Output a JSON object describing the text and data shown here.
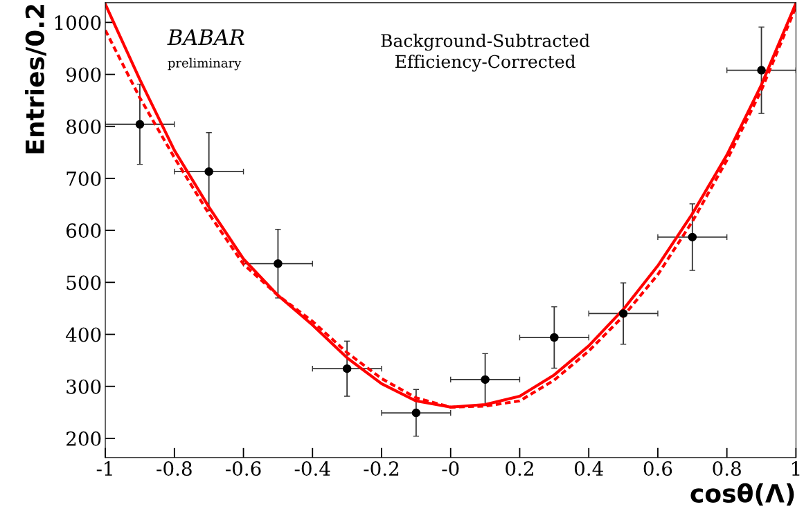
{
  "chart_data": {
    "type": "scatter",
    "xlabel": "cosθ(Λ)",
    "ylabel": "Entries/0.2",
    "annotations": [
      "BABAR",
      "preliminary",
      "Background-Subtracted\nEfficiency-Corrected"
    ],
    "xlim": [
      -1,
      1
    ],
    "xticks": [
      -1,
      -0.8,
      -0.6,
      -0.4,
      -0.2,
      {
        "value": 0,
        "label": "-0"
      },
      0.2,
      0.4,
      0.6,
      0.8,
      1
    ],
    "ylim": [
      163,
      1038
    ],
    "yticks": [
      200,
      300,
      400,
      500,
      600,
      700,
      800,
      900,
      1000
    ],
    "grid": false,
    "legend": false,
    "series": [
      {
        "color": "#000000",
        "marker": "circle",
        "x": [
          -0.9,
          -0.7,
          -0.5,
          -0.3,
          -0.1,
          0.1,
          0.3,
          0.5,
          0.7,
          0.9
        ],
        "values": [
          804,
          713,
          536,
          334,
          249,
          313,
          394,
          440,
          587,
          908
        ],
        "errors": [
          77,
          75,
          66,
          53,
          45,
          50,
          59,
          59,
          64,
          83
        ],
        "xerrors": [
          0.1,
          0.1,
          0.1,
          0.1,
          0.1,
          0.1,
          0.1,
          0.1,
          0.1,
          0.1
        ]
      },
      {
        "type": "line",
        "color": "#ff0000",
        "line_style": "solid",
        "x": [
          -1,
          -0.9,
          -0.8,
          -0.7,
          -0.6,
          -0.5,
          -0.4,
          -0.3,
          -0.2,
          -0.1,
          0,
          0.1,
          0.2,
          0.3,
          0.4,
          0.5,
          0.6,
          0.7,
          0.8,
          0.9,
          1
        ],
        "values": [
          1035,
          890,
          754,
          645,
          545,
          475,
          418,
          355,
          305,
          272,
          260,
          265,
          281,
          322,
          378,
          448,
          532,
          632,
          745,
          880,
          1037
        ]
      },
      {
        "type": "line",
        "color": "#ff0000",
        "line_style": "dotted",
        "x": [
          -1,
          -0.9,
          -0.8,
          -0.7,
          -0.6,
          -0.5,
          -0.4,
          -0.3,
          -0.2,
          -0.1,
          0,
          0.1,
          0.2,
          0.3,
          0.4,
          0.5,
          0.6,
          0.7,
          0.8,
          0.9,
          1
        ],
        "values": [
          985,
          855,
          740,
          632,
          535,
          475,
          425,
          365,
          315,
          278,
          260,
          262,
          272,
          312,
          368,
          435,
          515,
          617,
          735,
          870,
          1030
        ]
      }
    ]
  }
}
